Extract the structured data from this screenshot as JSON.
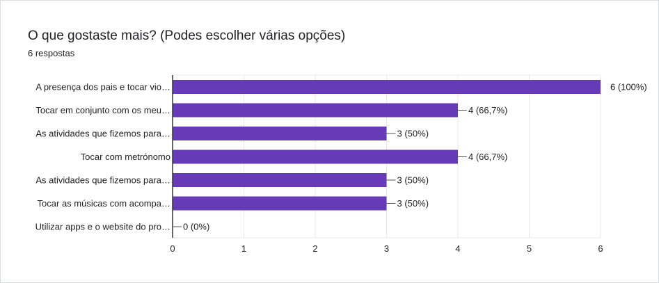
{
  "card": {
    "title": "O que gostaste mais? (Podes escolher várias opções)",
    "subtitle": "6 respostas"
  },
  "colors": {
    "bar": "#673ab7",
    "grid": "#e8e8e8",
    "axis": "#333333",
    "text": "#222222"
  },
  "chart_data": {
    "type": "bar",
    "orientation": "horizontal",
    "categories": [
      "A presença dos pais e tocar vio…",
      "Tocar em conjunto com os meu…",
      "As atividades que fizemos para…",
      "Tocar com metrónomo",
      "As atividades que fizemos para…",
      "Tocar as músicas com acompa…",
      "Utilizar apps e o website do pro…"
    ],
    "values": [
      6,
      4,
      3,
      4,
      3,
      3,
      0
    ],
    "data_labels": [
      "6 (100%)",
      "4 (66,7%)",
      "3 (50%)",
      "4 (66,7%)",
      "3 (50%)",
      "3 (50%)",
      "0 (0%)"
    ],
    "xlim": [
      0,
      6
    ],
    "xticks": [
      "0",
      "1",
      "2",
      "3",
      "4",
      "5",
      "6"
    ],
    "grid": true,
    "legend": "none"
  }
}
